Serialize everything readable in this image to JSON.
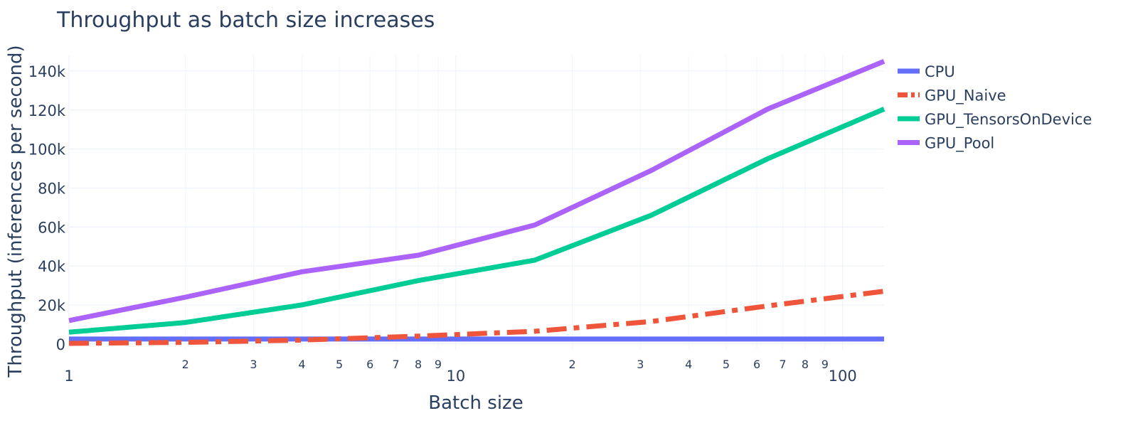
{
  "chart_data": {
    "type": "line",
    "title": "Throughput as batch size increases",
    "xlabel": "Batch size",
    "ylabel": "Throughput (inferences per second)",
    "x_scale": "log",
    "xlim": [
      1,
      128
    ],
    "ylim": [
      -3000,
      148000
    ],
    "x_major_ticks": [
      {
        "value": 1,
        "label": "1"
      },
      {
        "value": 10,
        "label": "10"
      },
      {
        "value": 100,
        "label": "100"
      }
    ],
    "x_minor_ticks": [
      {
        "value": 2,
        "label": "2"
      },
      {
        "value": 3,
        "label": "3"
      },
      {
        "value": 4,
        "label": "4"
      },
      {
        "value": 5,
        "label": "5"
      },
      {
        "value": 6,
        "label": "6"
      },
      {
        "value": 7,
        "label": "7"
      },
      {
        "value": 8,
        "label": "8"
      },
      {
        "value": 9,
        "label": "9"
      },
      {
        "value": 20,
        "label": "2"
      },
      {
        "value": 30,
        "label": "3"
      },
      {
        "value": 40,
        "label": "4"
      },
      {
        "value": 50,
        "label": "5"
      },
      {
        "value": 60,
        "label": "6"
      },
      {
        "value": 70,
        "label": "7"
      },
      {
        "value": 80,
        "label": "8"
      },
      {
        "value": 90,
        "label": "9"
      }
    ],
    "y_ticks": [
      {
        "value": 0,
        "label": "0"
      },
      {
        "value": 20000,
        "label": "20k"
      },
      {
        "value": 40000,
        "label": "40k"
      },
      {
        "value": 60000,
        "label": "60k"
      },
      {
        "value": 80000,
        "label": "80k"
      },
      {
        "value": 100000,
        "label": "100k"
      },
      {
        "value": 120000,
        "label": "120k"
      },
      {
        "value": 140000,
        "label": "140k"
      }
    ],
    "x": [
      1,
      2,
      4,
      8,
      16,
      32,
      64,
      128
    ],
    "series": [
      {
        "name": "CPU",
        "color": "#636efa",
        "dash": "solid",
        "values": [
          2500,
          2500,
          2500,
          2500,
          2500,
          2500,
          2500,
          2500
        ]
      },
      {
        "name": "GPU_Naive",
        "color": "#ef553b",
        "dash": "dashdot",
        "values": [
          300,
          800,
          2000,
          4000,
          6500,
          11500,
          19500,
          27000
        ]
      },
      {
        "name": "GPU_TensorsOnDevice",
        "color": "#00cc96",
        "dash": "solid",
        "values": [
          6000,
          11000,
          20000,
          32500,
          43000,
          66000,
          95000,
          120500
        ]
      },
      {
        "name": "GPU_Pool",
        "color": "#ab63fa",
        "dash": "solid",
        "values": [
          12000,
          24000,
          37000,
          45500,
          61000,
          89000,
          120500,
          145000
        ]
      }
    ],
    "grid": true,
    "legend_position": "top-right"
  }
}
